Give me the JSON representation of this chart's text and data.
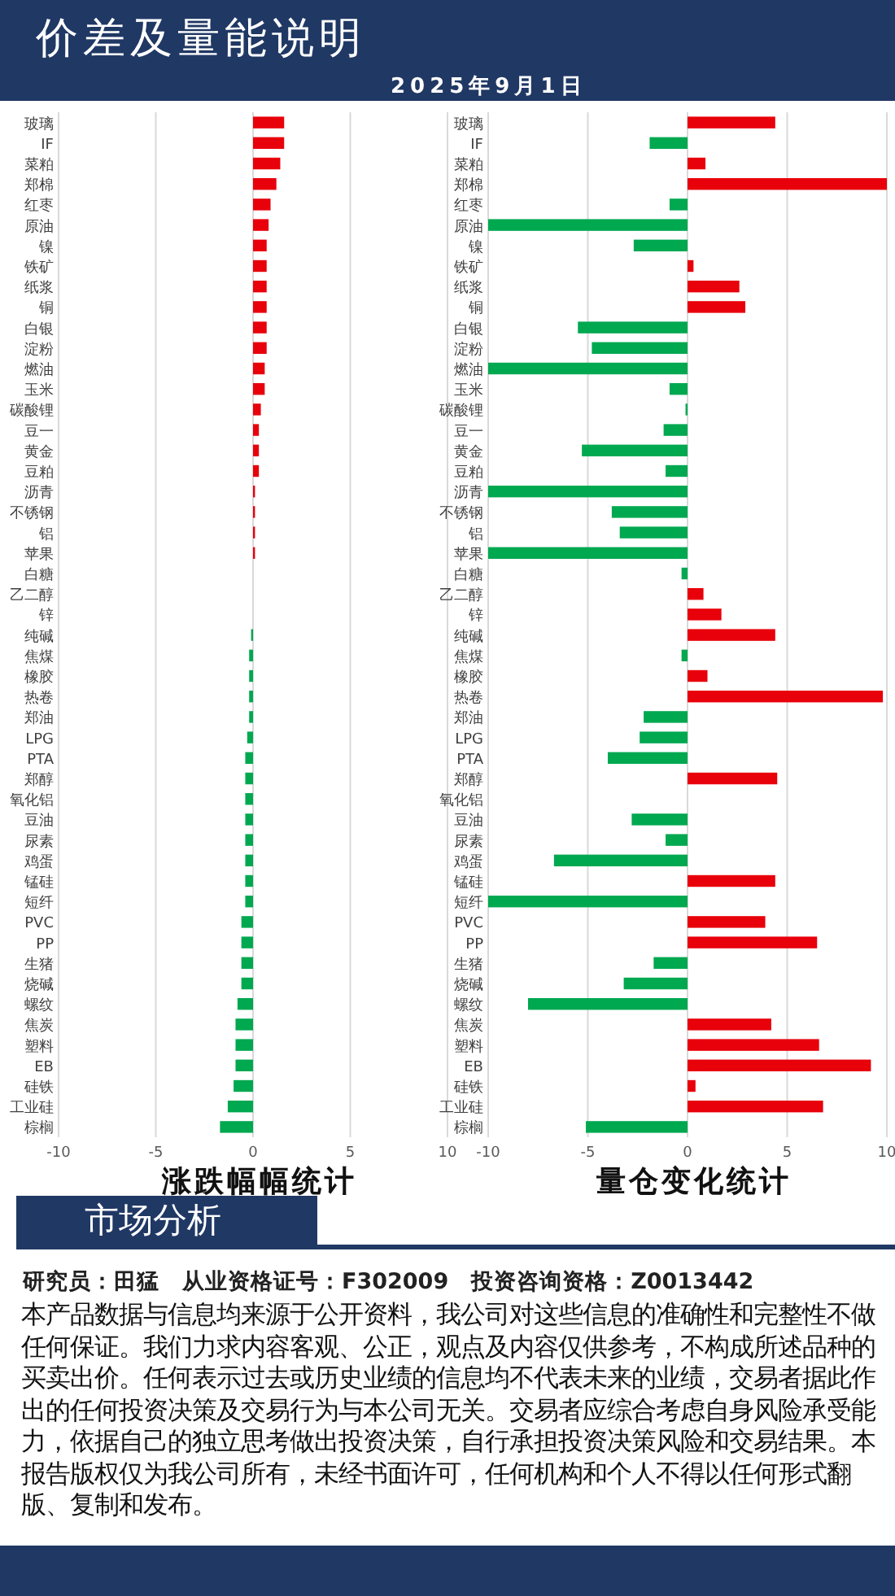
{
  "chart_data": [
    {
      "type": "other",
      "title": "价差及量能说明",
      "subtitle": "2025年9月1日"
    },
    {
      "type": "bar",
      "orientation": "horizontal",
      "xlabel": "涨跌幅幅统计",
      "xlim": [
        -10,
        10
      ],
      "xticks": [
        -10,
        -5,
        0,
        5,
        10
      ],
      "grid": "x",
      "categories": [
        "玻璃",
        "IF",
        "菜粕",
        "郑棉",
        "红枣",
        "原油",
        "镍",
        "铁矿",
        "纸浆",
        "铜",
        "白银",
        "淀粉",
        "燃油",
        "玉米",
        "碳酸锂",
        "豆一",
        "黄金",
        "豆粕",
        "沥青",
        "不锈钢",
        "铝",
        "苹果",
        "白糖",
        "乙二醇",
        "锌",
        "纯碱",
        "焦煤",
        "橡胶",
        "热卷",
        "郑油",
        "LPG",
        "PTA",
        "郑醇",
        "氧化铝",
        "豆油",
        "尿素",
        "鸡蛋",
        "锰硅",
        "短纤",
        "PVC",
        "PP",
        "生猪",
        "烧碱",
        "螺纹",
        "焦炭",
        "塑料",
        "EB",
        "硅铁",
        "工业硅",
        "棕榈"
      ],
      "values": [
        1.6,
        1.6,
        1.4,
        1.2,
        0.9,
        0.8,
        0.7,
        0.7,
        0.7,
        0.7,
        0.7,
        0.7,
        0.6,
        0.6,
        0.4,
        0.3,
        0.3,
        0.3,
        0.1,
        0.1,
        0.1,
        0.1,
        0,
        0,
        0,
        -0.1,
        -0.2,
        -0.2,
        -0.2,
        -0.2,
        -0.3,
        -0.4,
        -0.4,
        -0.4,
        -0.4,
        -0.4,
        -0.4,
        -0.4,
        -0.4,
        -0.6,
        -0.6,
        -0.6,
        -0.6,
        -0.8,
        -0.9,
        -0.9,
        -0.9,
        -1,
        -1.3,
        -1.7
      ],
      "colors": [
        "#e8000b",
        "#e8000b",
        "#e8000b",
        "#e8000b",
        "#e8000b",
        "#e8000b",
        "#e8000b",
        "#e8000b",
        "#e8000b",
        "#e8000b",
        "#e8000b",
        "#e8000b",
        "#e8000b",
        "#e8000b",
        "#e8000b",
        "#e8000b",
        "#e8000b",
        "#e8000b",
        "#e8000b",
        "#e8000b",
        "#e8000b",
        "#e8000b",
        "#e8000b",
        "#e8000b",
        "#e8000b",
        "#00a850",
        "#00a850",
        "#00a850",
        "#00a850",
        "#00a850",
        "#00a850",
        "#00a850",
        "#00a850",
        "#00a850",
        "#00a850",
        "#00a850",
        "#00a850",
        "#00a850",
        "#00a850",
        "#00a850",
        "#00a850",
        "#00a850",
        "#00a850",
        "#00a850",
        "#00a850",
        "#00a850",
        "#00a850",
        "#00a850",
        "#00a850",
        "#00a850"
      ]
    },
    {
      "type": "bar",
      "orientation": "horizontal",
      "xlabel": "量仓变化统计",
      "xlim": [
        -10,
        10
      ],
      "xticks": [
        -10,
        -5,
        0,
        5,
        10
      ],
      "grid": "x",
      "categories": [
        "玻璃",
        "IF",
        "菜粕",
        "郑棉",
        "红枣",
        "原油",
        "镍",
        "铁矿",
        "纸浆",
        "铜",
        "白银",
        "淀粉",
        "燃油",
        "玉米",
        "碳酸锂",
        "豆一",
        "黄金",
        "豆粕",
        "沥青",
        "不锈钢",
        "铝",
        "苹果",
        "白糖",
        "乙二醇",
        "锌",
        "纯碱",
        "焦煤",
        "橡胶",
        "热卷",
        "郑油",
        "LPG",
        "PTA",
        "郑醇",
        "氧化铝",
        "豆油",
        "尿素",
        "鸡蛋",
        "锰硅",
        "短纤",
        "PVC",
        "PP",
        "生猪",
        "烧碱",
        "螺纹",
        "焦炭",
        "塑料",
        "EB",
        "硅铁",
        "工业硅",
        "棕榈"
      ],
      "values": [
        4.4,
        -1.9,
        0.9,
        10,
        -0.9,
        -10,
        -2.7,
        0.3,
        2.6,
        2.9,
        -5.5,
        -4.8,
        -10,
        -0.9,
        -0.1,
        -1.2,
        -5.3,
        -1.1,
        -10,
        -3.8,
        -3.4,
        -10,
        -0.3,
        0.8,
        1.7,
        4.4,
        -0.3,
        1,
        9.8,
        -2.2,
        -2.4,
        -4,
        4.5,
        0,
        -2.8,
        -1.1,
        -6.7,
        4.4,
        -10,
        3.9,
        6.5,
        -1.7,
        -3.2,
        -8,
        4.2,
        6.6,
        9.2,
        0.4,
        6.8,
        -5.1
      ],
      "colors": [
        "#e8000b",
        "#00a850",
        "#e8000b",
        "#e8000b",
        "#00a850",
        "#00a850",
        "#00a850",
        "#e8000b",
        "#e8000b",
        "#e8000b",
        "#00a850",
        "#00a850",
        "#00a850",
        "#00a850",
        "#00a850",
        "#00a850",
        "#00a850",
        "#00a850",
        "#00a850",
        "#00a850",
        "#00a850",
        "#00a850",
        "#00a850",
        "#e8000b",
        "#e8000b",
        "#e8000b",
        "#00a850",
        "#e8000b",
        "#e8000b",
        "#00a850",
        "#00a850",
        "#00a850",
        "#e8000b",
        "#00a850",
        "#00a850",
        "#00a850",
        "#00a850",
        "#e8000b",
        "#00a850",
        "#e8000b",
        "#e8000b",
        "#00a850",
        "#00a850",
        "#00a850",
        "#e8000b",
        "#e8000b",
        "#e8000b",
        "#e8000b",
        "#e8000b",
        "#00a850"
      ]
    },
    {
      "type": "other",
      "title": "市场分析",
      "annotations": [
        "研究员：田猛　从业资格证号：F302009　投资咨询资格：Z0013442",
        "本产品数据与信息均来源于公开资料，我公司对这些信息的准确性和完整性不做任何保证。我们力求内容客观、公正，观点及内容仅供参考，不构成所述品种的买卖出价。任何表示过去或历史业绩的信息均不代表未来的业绩，交易者据此作出的任何投资决策及交易行为与本公司无关。交易者应综合考虑自身风险承受能力，依据自己的独立思考做出投资决策，自行承担投资决策风险和交易结果。本报告版权仅为我公司所有，未经书面许可，任何机构和个人不得以任何形式翻版、复制和发布。"
      ]
    }
  ]
}
